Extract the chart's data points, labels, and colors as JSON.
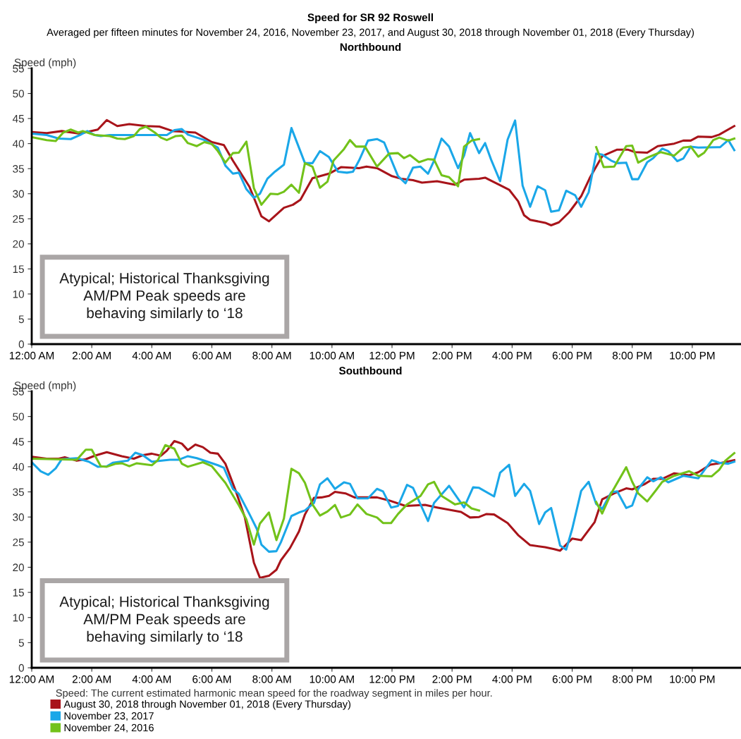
{
  "chart_data": [
    {
      "type": "line",
      "title": "Speed for SR 92 Roswell",
      "subtitle": "Averaged per fifteen minutes for November 24, 2016, November 23, 2017, and August 30, 2018 through November 01, 2018 (Every Thursday)",
      "ylabel": "Speed (mph)",
      "annotations": [
        "Northbound",
        "Atypical; Historical Thanksgiving AM/PM Peak speeds are behaving similarly to ‘18"
      ],
      "xlim": [
        0,
        23.6
      ],
      "ylim": [
        0,
        55
      ],
      "xticks": [
        {
          "value": 0,
          "label": "12:00 AM"
        },
        {
          "value": 2,
          "label": "2:00 AM"
        },
        {
          "value": 4,
          "label": "4:00 AM"
        },
        {
          "value": 6,
          "label": "6:00 AM"
        },
        {
          "value": 8,
          "label": "8:00 AM"
        },
        {
          "value": 10,
          "label": "10:00 AM"
        },
        {
          "value": 12,
          "label": "12:00 PM"
        },
        {
          "value": 14,
          "label": "2:00 PM"
        },
        {
          "value": 16,
          "label": "4:00 PM"
        },
        {
          "value": 18,
          "label": "6:00 PM"
        },
        {
          "value": 20,
          "label": "8:00 PM"
        },
        {
          "value": 22,
          "label": "10:00 PM"
        }
      ],
      "yticks": [
        0,
        5,
        10,
        15,
        20,
        25,
        30,
        35,
        40,
        45,
        50,
        55
      ],
      "grid": false,
      "marker": "none",
      "line_style": "solid",
      "series": [
        {
          "color": "#a8141a",
          "x": [
            0,
            0.5,
            1.0,
            1.6,
            2.2,
            2.5,
            2.85,
            3.25,
            3.8,
            4.25,
            4.7,
            5.45,
            6.0,
            6.4,
            6.7,
            7.25,
            7.65,
            7.9,
            8.4,
            8.7,
            8.95,
            9.35,
            9.9,
            10.3,
            10.9,
            11.15,
            11.5,
            12.0,
            12.3,
            12.7,
            13.0,
            13.5,
            14.1,
            14.4,
            14.9,
            15.1,
            15.6,
            15.9,
            16.2,
            16.4,
            16.6,
            17.1,
            17.3,
            17.56,
            17.9,
            18.3,
            18.6,
            19.0,
            19.5,
            19.85,
            20.1,
            20.5,
            20.85,
            21.4,
            21.7,
            21.95,
            22.2,
            22.65,
            22.9,
            23.4
          ],
          "values": [
            42.3,
            42.1,
            42.5,
            42.0,
            42.8,
            44.7,
            43.5,
            43.9,
            43.5,
            43.4,
            42.5,
            42.2,
            40.3,
            39.7,
            36.6,
            31.4,
            25.5,
            24.5,
            27.2,
            27.8,
            28.8,
            33.1,
            34.0,
            35.3,
            35.1,
            35.4,
            35.1,
            33.5,
            33.0,
            32.7,
            32.2,
            32.5,
            31.8,
            32.8,
            33.0,
            33.2,
            31.7,
            30.8,
            28.5,
            25.7,
            24.8,
            24.2,
            23.7,
            24.3,
            26.3,
            29.5,
            33.3,
            37.5,
            38.8,
            38.8,
            38.3,
            38.2,
            39.5,
            40.0,
            40.6,
            40.6,
            41.4,
            41.3,
            41.8,
            43.5
          ]
        },
        {
          "color": "#1aa7e8",
          "x": [
            0,
            0.5,
            0.9,
            1.3,
            1.6,
            1.85,
            2.1,
            2.3,
            2.6,
            4.5,
            4.75,
            5.0,
            5.2,
            5.75,
            6.2,
            6.45,
            6.7,
            6.9,
            7.15,
            7.4,
            7.6,
            7.85,
            8.1,
            8.4,
            8.65,
            9.1,
            9.35,
            9.6,
            9.9,
            10.2,
            10.5,
            10.7,
            10.9,
            11.2,
            11.5,
            11.74,
            12.2,
            12.45,
            12.7,
            12.95,
            13.2,
            13.4,
            13.65,
            13.9,
            14.2,
            14.4,
            14.6,
            14.9,
            15.1,
            15.3,
            15.6,
            15.85,
            16.1,
            16.35,
            16.6,
            16.85,
            17.1,
            17.3,
            17.56,
            17.8,
            18.1,
            18.3,
            18.55,
            18.8,
            19.0,
            19.3,
            19.5,
            19.8,
            20.0,
            20.2,
            20.5,
            20.7,
            21.0,
            21.2,
            21.5,
            21.7,
            21.95,
            22.2,
            22.93,
            23.2,
            23.4
          ],
          "values": [
            42.0,
            41.7,
            41.0,
            40.9,
            41.7,
            42.5,
            41.7,
            41.5,
            41.7,
            41.7,
            42.7,
            42.9,
            41.8,
            40.7,
            39.2,
            35.6,
            34.0,
            34.2,
            30.9,
            29.2,
            30.0,
            33.0,
            34.4,
            35.8,
            43.1,
            36.1,
            36.1,
            38.5,
            37.3,
            34.4,
            34.2,
            34.4,
            36.6,
            40.6,
            40.9,
            40.2,
            33.5,
            32.1,
            35.2,
            35.4,
            34.0,
            36.6,
            41.0,
            39.4,
            35.1,
            37.6,
            42.1,
            38.1,
            40.1,
            36.8,
            32.5,
            40.8,
            44.6,
            31.6,
            27.4,
            31.5,
            30.7,
            26.4,
            26.7,
            30.6,
            29.7,
            27.4,
            30.3,
            38.0,
            37.8,
            36.6,
            36.1,
            36.2,
            32.9,
            32.9,
            36.3,
            37.1,
            39.0,
            38.5,
            36.5,
            37.0,
            39.4,
            39.2,
            39.3,
            40.7,
            38.7
          ]
        },
        {
          "color": "#72c21a",
          "x": [
            0,
            0.5,
            0.8,
            1.05,
            1.3,
            1.55,
            1.7,
            2.1,
            2.6,
            2.85,
            3.1,
            3.4,
            3.6,
            3.8,
            4.1,
            4.3,
            4.5,
            4.8,
            5.0,
            5.2,
            5.5,
            5.75,
            6.0,
            6.2,
            6.45,
            6.7,
            6.9,
            7.15,
            7.4,
            7.65,
            7.95,
            8.2,
            8.4,
            8.65,
            8.9,
            9.1,
            9.35,
            9.6,
            9.85,
            10.05,
            10.4,
            10.6,
            10.8,
            11.1,
            11.5,
            11.9,
            12.2,
            12.4,
            12.6,
            12.9,
            13.2,
            13.4,
            13.65,
            13.9,
            14.2,
            14.4,
            14.65,
            14.9,
            16.8,
            18.8,
            19.05,
            19.4,
            19.8,
            20.0,
            20.2,
            20.5,
            20.95,
            21.4,
            21.7,
            21.95,
            22.2,
            22.4,
            22.7,
            22.9,
            23.2,
            23.4
          ],
          "values": [
            41.3,
            40.7,
            40.5,
            42.2,
            42.8,
            42.2,
            42.5,
            41.7,
            41.5,
            41.0,
            40.9,
            41.5,
            42.9,
            43.4,
            42.2,
            41.2,
            40.7,
            41.5,
            41.6,
            40.1,
            39.5,
            40.3,
            39.9,
            38.5,
            36.2,
            38.1,
            38.2,
            40.4,
            31.1,
            27.8,
            30.0,
            29.9,
            30.4,
            31.8,
            30.2,
            36.1,
            35.4,
            31.2,
            32.4,
            36.6,
            38.9,
            40.7,
            39.4,
            39.4,
            35.4,
            38.0,
            38.1,
            37.1,
            37.7,
            36.3,
            36.9,
            36.8,
            33.7,
            33.3,
            31.5,
            39.4,
            40.6,
            40.9,
            null,
            39.3,
            35.3,
            35.4,
            39.5,
            39.6,
            36.2,
            37.2,
            38.3,
            37.6,
            39.2,
            39.4,
            37.4,
            38.2,
            40.7,
            41.2,
            40.6,
            41.0
          ]
        }
      ]
    },
    {
      "type": "line",
      "title": "Southbound",
      "ylabel": "Speed (mph)",
      "annotations": [
        "Atypical; Historical Thanksgiving AM/PM Peak speeds are behaving similarly to ‘18",
        "Speed: The current estimated harmonic mean speed for the roadway segment in miles per hour."
      ],
      "xlim": [
        0,
        23.6
      ],
      "ylim": [
        0,
        55
      ],
      "xticks": [
        {
          "value": 0,
          "label": "12:00 AM"
        },
        {
          "value": 2,
          "label": "2:00 AM"
        },
        {
          "value": 4,
          "label": "4:00 AM"
        },
        {
          "value": 6,
          "label": "6:00 AM"
        },
        {
          "value": 8,
          "label": "8:00 AM"
        },
        {
          "value": 10,
          "label": "10:00 AM"
        },
        {
          "value": 12,
          "label": "12:00 PM"
        },
        {
          "value": 14,
          "label": "2:00 PM"
        },
        {
          "value": 16,
          "label": "4:00 PM"
        },
        {
          "value": 18,
          "label": "6:00 PM"
        },
        {
          "value": 20,
          "label": "8:00 PM"
        },
        {
          "value": 22,
          "label": "10:00 PM"
        }
      ],
      "yticks": [
        0,
        5,
        10,
        15,
        20,
        25,
        30,
        35,
        40,
        45,
        50,
        55
      ],
      "grid": false,
      "marker": "none",
      "line_style": "solid",
      "legend": "bottom left",
      "series": [
        {
          "name": "August 30, 2018 through November 01, 2018 (Every Thursday)",
          "color": "#a8141a",
          "x": [
            0,
            0.5,
            0.9,
            1.1,
            1.5,
            1.8,
            2.1,
            2.5,
            3.0,
            3.4,
            3.7,
            4.0,
            4.3,
            4.5,
            4.75,
            5.0,
            5.2,
            5.45,
            5.7,
            5.95,
            6.2,
            6.45,
            6.8,
            7.1,
            7.4,
            7.6,
            7.9,
            8.15,
            8.3,
            8.6,
            8.9,
            9.1,
            9.4,
            9.65,
            9.9,
            10.1,
            10.45,
            10.75,
            11.05,
            11.5,
            11.9,
            12.45,
            13.1,
            13.5,
            14.3,
            14.6,
            14.9,
            15.15,
            15.4,
            15.85,
            16.2,
            16.6,
            17.1,
            17.4,
            17.6,
            18.0,
            18.3,
            18.75,
            19.0,
            19.4,
            19.8,
            20.0,
            20.4,
            20.7,
            21.0,
            21.4,
            21.9,
            22.2,
            22.6,
            22.9,
            23.4
          ],
          "values": [
            42.0,
            41.6,
            41.6,
            41.9,
            41.2,
            41.5,
            42.2,
            42.9,
            42.1,
            41.6,
            42.3,
            42.6,
            42.2,
            43.2,
            45.1,
            44.6,
            43.3,
            44.4,
            43.9,
            42.8,
            42.6,
            40.6,
            35.1,
            29.9,
            20.9,
            17.9,
            18.3,
            19.5,
            21.4,
            23.8,
            27.1,
            30.5,
            33.8,
            33.9,
            34.2,
            35.0,
            34.7,
            33.9,
            33.9,
            33.9,
            33.3,
            32.2,
            32.4,
            31.9,
            31.0,
            29.9,
            30.0,
            30.6,
            30.5,
            28.8,
            26.4,
            24.4,
            24.0,
            23.6,
            23.3,
            25.7,
            25.4,
            29.0,
            33.5,
            34.7,
            35.7,
            35.5,
            36.5,
            37.6,
            37.6,
            38.7,
            38.3,
            38.9,
            40.4,
            40.7,
            41.3
          ]
        },
        {
          "name": "November 23, 2017",
          "color": "#1aa7e8",
          "x": [
            0,
            0.3,
            0.55,
            0.8,
            1.0,
            1.5,
            1.9,
            2.2,
            2.5,
            2.7,
            3.2,
            3.45,
            3.7,
            4.0,
            4.6,
            4.9,
            5.2,
            5.5,
            5.8,
            6.2,
            6.4,
            6.7,
            6.9,
            7.25,
            7.5,
            7.65,
            7.9,
            8.15,
            8.3,
            8.65,
            8.9,
            9.1,
            9.4,
            9.6,
            9.85,
            10.1,
            10.4,
            10.6,
            10.85,
            11.2,
            11.5,
            11.7,
            11.97,
            12.2,
            12.5,
            12.7,
            13.2,
            13.4,
            13.9,
            14.4,
            14.7,
            14.9,
            15.4,
            15.6,
            15.9,
            16.1,
            16.4,
            16.6,
            16.9,
            17.1,
            17.3,
            17.6,
            17.8,
            18.0,
            18.3,
            18.55,
            18.8,
            19.0,
            19.3,
            19.5,
            19.8,
            20.0,
            20.2,
            20.5,
            20.7,
            20.95,
            21.2,
            21.7,
            22.2,
            22.65,
            22.9,
            23.2,
            23.4
          ],
          "values": [
            40.9,
            39.1,
            38.4,
            39.7,
            41.5,
            41.7,
            41.0,
            40.0,
            40.1,
            40.8,
            41.2,
            42.8,
            42.3,
            41.0,
            41.4,
            41.4,
            42.1,
            41.7,
            41.1,
            40.3,
            39.8,
            35.6,
            34.6,
            30.6,
            27.6,
            24.5,
            23.1,
            23.2,
            25.0,
            30.2,
            30.9,
            31.3,
            32.8,
            36.5,
            37.7,
            35.6,
            36.9,
            36.6,
            33.7,
            33.7,
            35.6,
            35.1,
            31.9,
            32.2,
            36.4,
            35.8,
            29.2,
            32.8,
            36.2,
            31.9,
            35.9,
            35.8,
            34.1,
            38.8,
            40.4,
            34.2,
            36.6,
            35.2,
            28.6,
            30.9,
            31.8,
            24.3,
            23.5,
            27.6,
            35.2,
            37.0,
            32.6,
            31.6,
            34.9,
            35.1,
            31.8,
            32.3,
            35.6,
            37.9,
            37.1,
            37.9,
            36.9,
            38.2,
            37.7,
            41.3,
            40.8,
            40.6,
            41.0
          ]
        },
        {
          "name": "November 24, 2016",
          "color": "#72c21a",
          "x": [
            0,
            1.5,
            1.8,
            2.0,
            2.3,
            2.5,
            2.8,
            3.0,
            3.25,
            3.5,
            4.0,
            4.2,
            4.45,
            4.75,
            5.0,
            5.2,
            5.7,
            6.0,
            6.45,
            6.9,
            7.15,
            7.4,
            7.6,
            7.9,
            8.15,
            8.4,
            8.65,
            8.9,
            9.1,
            9.35,
            9.6,
            9.85,
            10.1,
            10.3,
            10.6,
            10.85,
            11.15,
            11.5,
            11.7,
            11.97,
            12.2,
            12.5,
            12.95,
            13.2,
            13.4,
            13.65,
            14.1,
            14.4,
            14.65,
            14.9,
            16.8,
            18.8,
            19.0,
            19.3,
            19.8,
            20.0,
            20.2,
            20.5,
            20.8,
            21.0,
            21.4,
            21.9,
            22.2,
            22.65,
            22.9,
            23.1,
            23.4
          ],
          "values": [
            41.6,
            41.4,
            43.4,
            43.4,
            40.1,
            40.0,
            40.6,
            40.7,
            40.1,
            40.7,
            40.3,
            41.3,
            44.3,
            43.6,
            40.6,
            40.0,
            40.9,
            40.1,
            36.8,
            32.3,
            29.5,
            24.5,
            28.7,
            30.9,
            25.4,
            29.7,
            39.6,
            38.7,
            36.8,
            32.5,
            30.3,
            31.1,
            32.4,
            29.9,
            30.5,
            32.5,
            30.6,
            29.9,
            28.8,
            28.8,
            30.6,
            32.5,
            34.2,
            36.5,
            37.0,
            34.2,
            32.5,
            32.9,
            31.7,
            31.3,
            null,
            33.0,
            30.7,
            34.7,
            39.9,
            37.0,
            34.7,
            33.1,
            35.4,
            37.0,
            38.2,
            39.1,
            38.2,
            38.1,
            39.4,
            41.2,
            42.7
          ]
        }
      ]
    }
  ]
}
